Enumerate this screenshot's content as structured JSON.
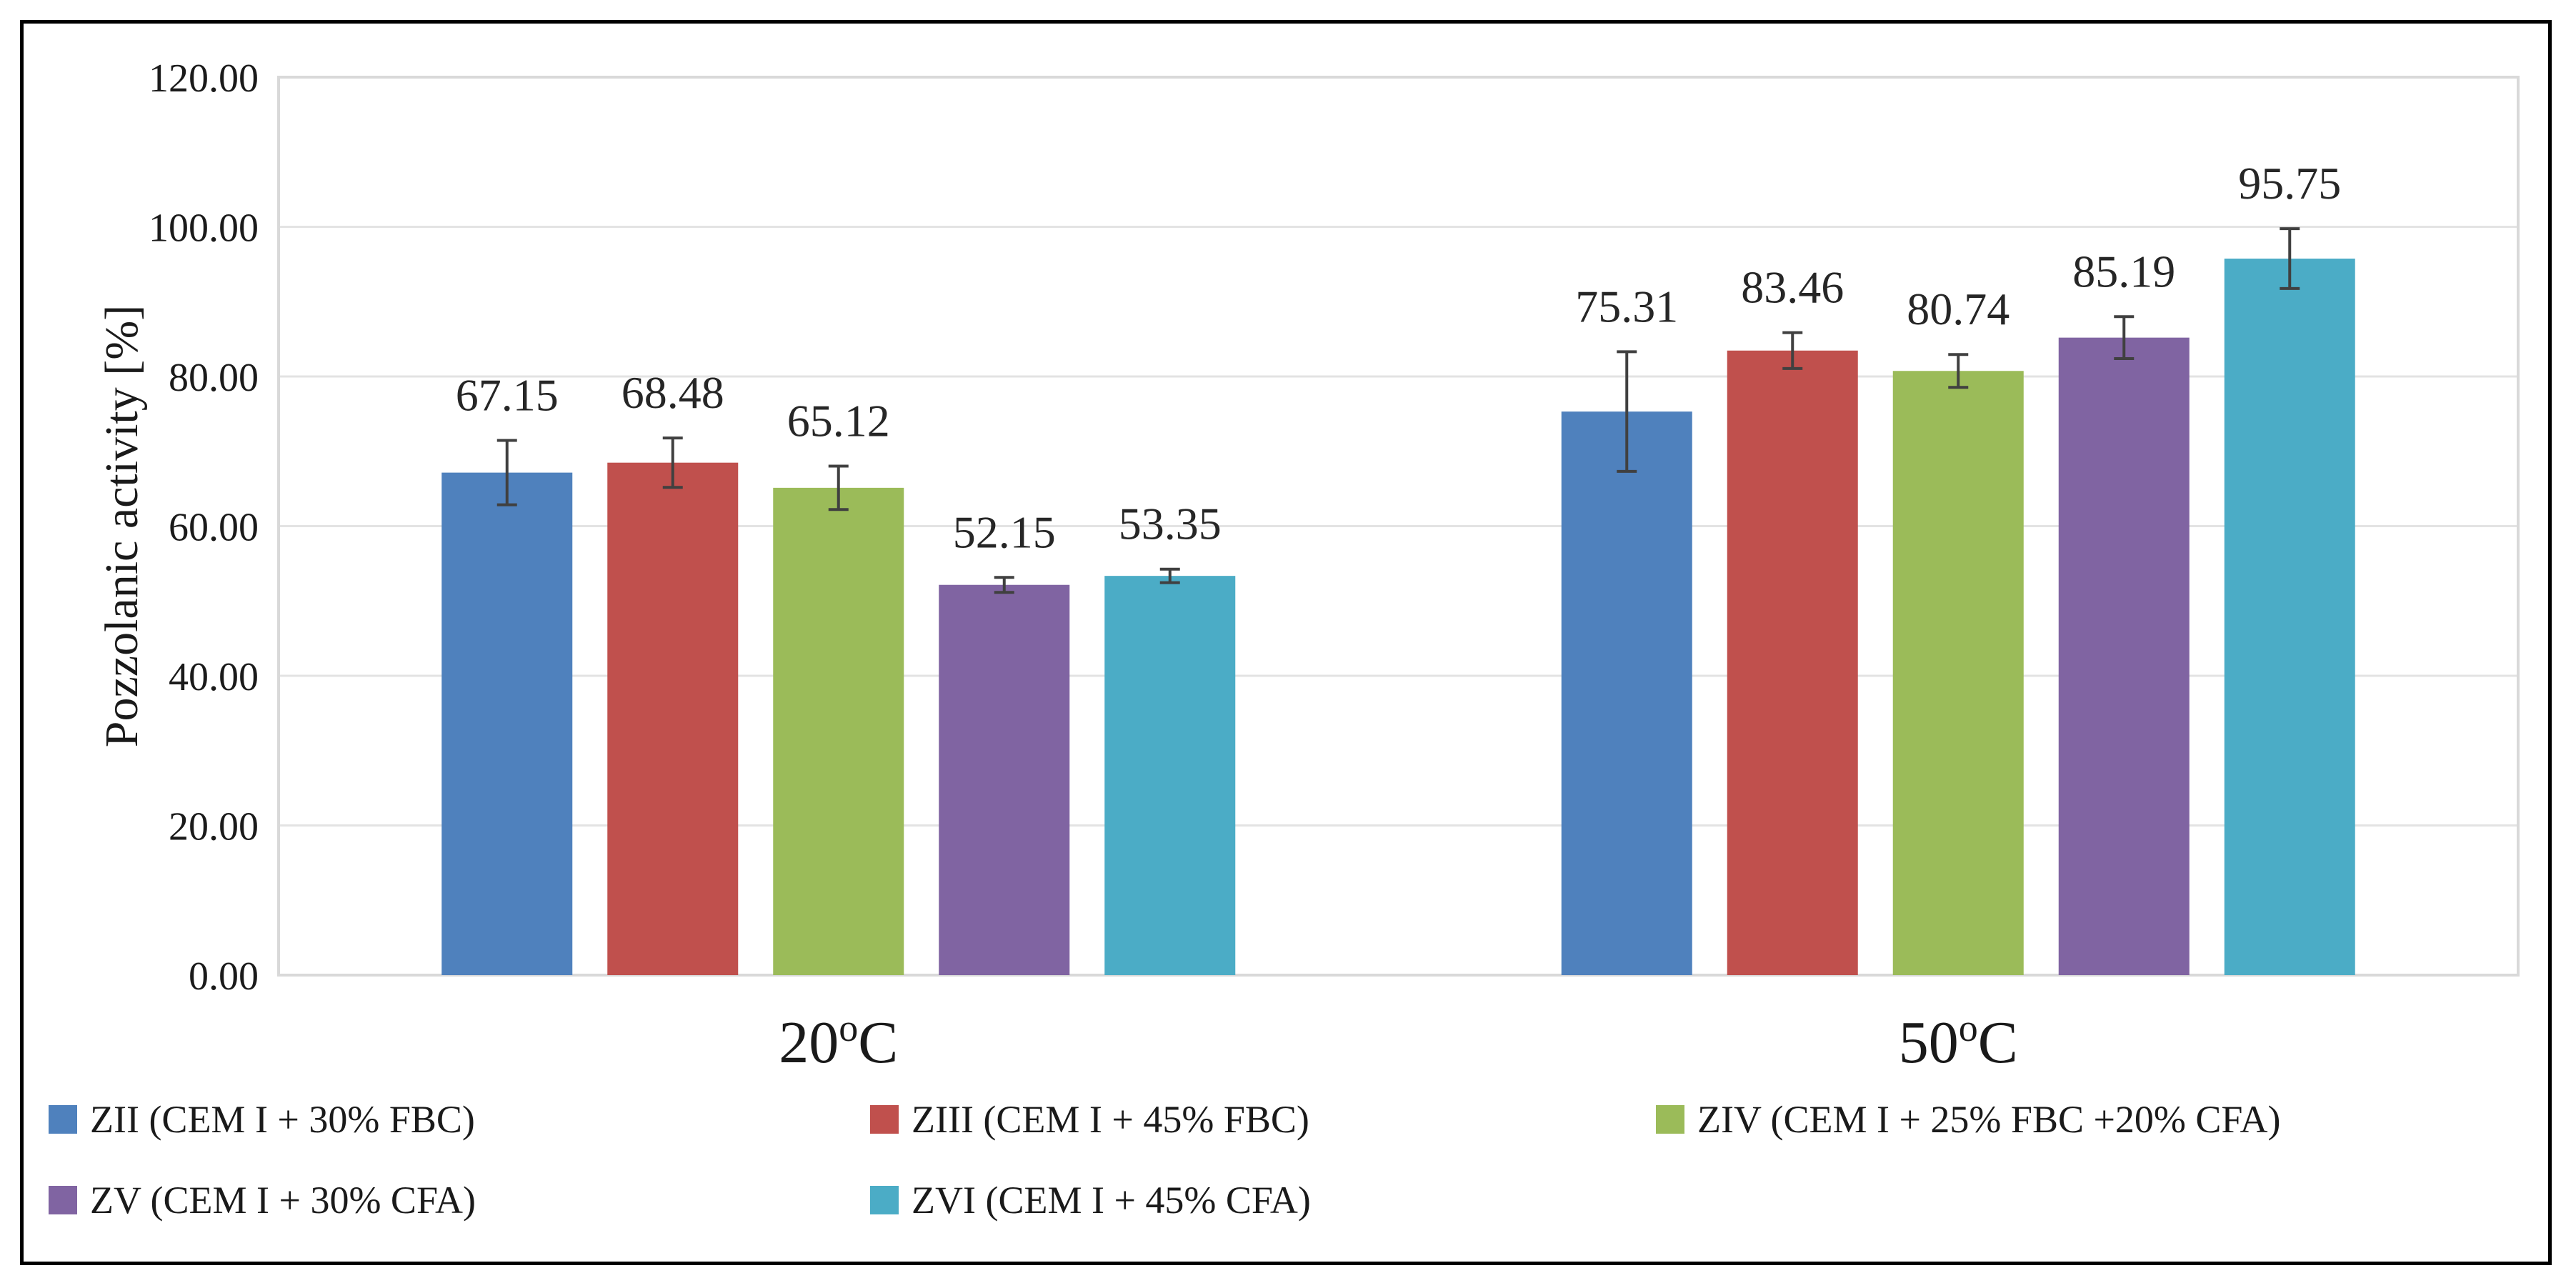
{
  "chart_data": {
    "type": "bar",
    "title": "",
    "xlabel": "",
    "ylabel": "Pozzolanic activity [%]",
    "ylim": [
      0,
      120
    ],
    "yticks": [
      "0.00",
      "20.00",
      "40.00",
      "60.00",
      "80.00",
      "100.00",
      "120.00"
    ],
    "ytick_values": [
      0,
      20,
      40,
      60,
      80,
      100,
      120
    ],
    "grid": true,
    "legend_position": "bottom",
    "categories": [
      "20oC",
      "50oC"
    ],
    "series": [
      {
        "name": "ZII (CEM I + 30% FBC)",
        "color": "#4f81bd",
        "values": [
          67.15,
          75.31
        ],
        "labels": [
          "67.15",
          "75.31"
        ],
        "errors": [
          4.3,
          8.0
        ]
      },
      {
        "name": "ZIII (CEM I + 45% FBC)",
        "color": "#c0504d",
        "values": [
          68.48,
          83.46
        ],
        "labels": [
          "68.48",
          "83.46"
        ],
        "errors": [
          3.3,
          2.4
        ]
      },
      {
        "name": "ZIV (CEM I + 25% FBC +20% CFA)",
        "color": "#9bbb59",
        "values": [
          65.12,
          80.74
        ],
        "labels": [
          "65.12",
          "80.74"
        ],
        "errors": [
          2.9,
          2.2
        ]
      },
      {
        "name": "ZV (CEM I + 30% CFA)",
        "color": "#8064a2",
        "values": [
          52.15,
          85.19
        ],
        "labels": [
          "52.15",
          "85.19"
        ],
        "errors": [
          1.0,
          2.8
        ]
      },
      {
        "name": "ZVI (CEM I + 45% CFA)",
        "color": "#4bacc6",
        "values": [
          53.35,
          95.75
        ],
        "labels": [
          "53.35",
          "95.75"
        ],
        "errors": [
          0.9,
          4.0
        ]
      }
    ]
  }
}
